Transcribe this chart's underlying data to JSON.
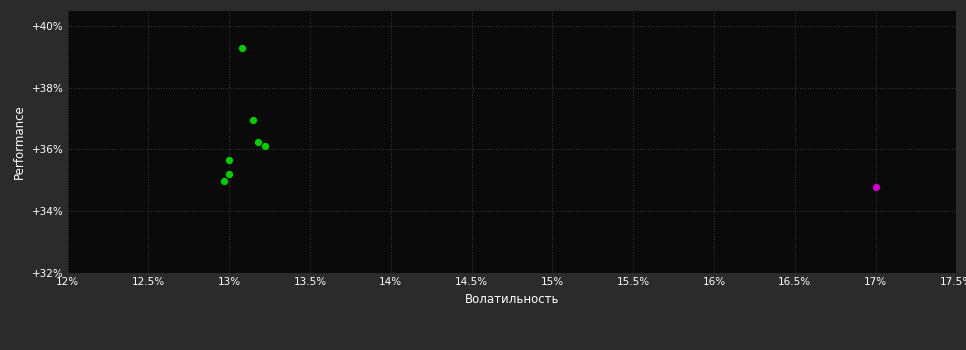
{
  "background_color": "#2b2b2b",
  "plot_bg_color": "#0a0a0a",
  "grid_color": "#3a3a3a",
  "text_color": "#ffffff",
  "xlabel": "Волатильность",
  "ylabel": "Performance",
  "xlim": [
    0.12,
    0.175
  ],
  "ylim": [
    0.32,
    0.405
  ],
  "xtick_vals": [
    0.12,
    0.125,
    0.13,
    0.135,
    0.14,
    0.145,
    0.15,
    0.155,
    0.16,
    0.165,
    0.17,
    0.175
  ],
  "xtick_labels": [
    "12%",
    "12.5%",
    "13%",
    "13.5%",
    "14%",
    "14.5%",
    "15%",
    "15.5%",
    "16%",
    "16.5%",
    "17%",
    "17.5%"
  ],
  "ytick_vals": [
    0.32,
    0.34,
    0.36,
    0.38,
    0.4
  ],
  "ytick_labels": [
    "+32%",
    "+34%",
    "+36%",
    "+38%",
    "+40%"
  ],
  "green_points": [
    [
      0.1308,
      0.393
    ],
    [
      0.1315,
      0.3695
    ],
    [
      0.1318,
      0.3625
    ],
    [
      0.1322,
      0.361
    ],
    [
      0.13,
      0.3565
    ],
    [
      0.13,
      0.352
    ],
    [
      0.1297,
      0.3498
    ]
  ],
  "magenta_point": [
    0.17,
    0.348
  ],
  "green_color": "#00cc00",
  "magenta_color": "#cc00cc",
  "dot_size": 28,
  "figsize": [
    9.66,
    3.5
  ],
  "dpi": 100
}
